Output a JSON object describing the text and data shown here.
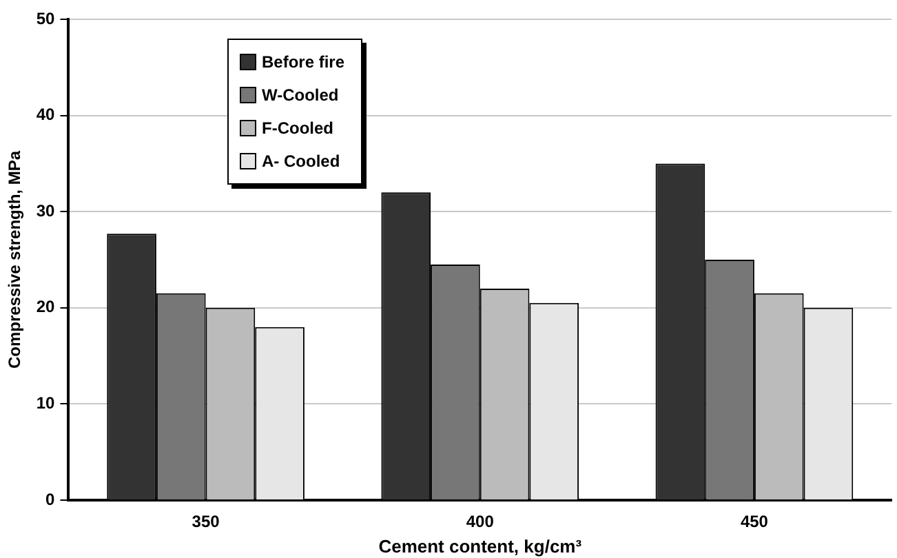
{
  "chart_data": {
    "type": "bar",
    "xlabel": "Cement content, kg/cm³",
    "ylabel": "Compressive strength, MPa",
    "categories": [
      "350",
      "400",
      "450"
    ],
    "series": [
      {
        "name": "Before fire",
        "color": "#333333",
        "values": [
          27.7,
          32,
          35
        ]
      },
      {
        "name": "W-Cooled",
        "color": "#777777",
        "values": [
          21.5,
          24.5,
          25
        ]
      },
      {
        "name": "F-Cooled",
        "color": "#bbbbbb",
        "values": [
          20,
          22,
          21.5
        ]
      },
      {
        "name": "A- Cooled",
        "color": "#e6e6e6",
        "values": [
          18,
          20.5,
          20
        ]
      }
    ],
    "ylim": [
      0,
      50
    ],
    "yticks": [
      0,
      10,
      20,
      30,
      40,
      50
    ],
    "grid": "y",
    "legend": "top left"
  }
}
